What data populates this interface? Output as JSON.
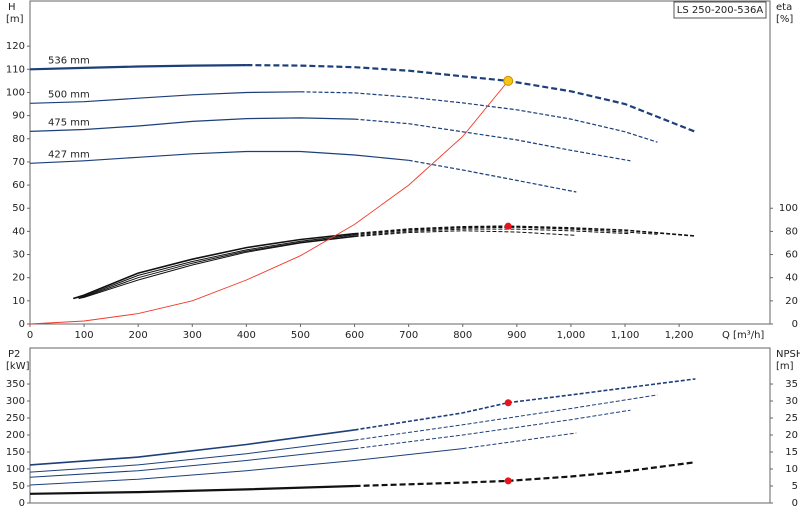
{
  "badge": "LS 250-200-536A",
  "chart_data": [
    {
      "type": "line",
      "ylabel": "H",
      "yunit": "[m]",
      "y2label": "eta",
      "y2unit": "[%]",
      "xlabel": "Q [m³/h]",
      "xlim": [
        0,
        1368
      ],
      "ylim": [
        0,
        139.5
      ],
      "y2lim": [
        0,
        279
      ],
      "xticks": [
        0,
        100,
        200,
        300,
        400,
        500,
        600,
        700,
        800,
        900,
        {
          "value": 1000,
          "label": "1,000"
        },
        {
          "value": 1100,
          "label": "1,100"
        },
        {
          "value": 1200,
          "label": "1,200"
        }
      ],
      "yticks": [
        0,
        10,
        20,
        30,
        40,
        50,
        60,
        70,
        80,
        90,
        100,
        110,
        120
      ],
      "y2ticks": [
        0,
        20,
        40,
        60,
        80,
        100
      ],
      "series": [
        {
          "name": "536 mm",
          "color": "#1d3f7a",
          "width": 2.2,
          "dash_from": 400,
          "x": [
            0,
            100,
            200,
            300,
            400,
            500,
            600,
            700,
            800,
            884,
            1000,
            1100,
            1230
          ],
          "values": [
            110,
            110.6,
            111.2,
            111.6,
            111.8,
            111.6,
            110.9,
            109.4,
            107,
            105,
            100.5,
            95,
            83
          ]
        },
        {
          "name": "500 mm",
          "color": "#1d3f7a",
          "width": 1.2,
          "dash_from": 500,
          "x": [
            0,
            100,
            200,
            300,
            400,
            500,
            600,
            700,
            800,
            900,
            1000,
            1100,
            1160
          ],
          "values": [
            95.3,
            96,
            97.5,
            99,
            100,
            100.3,
            99.8,
            98,
            95.5,
            92.5,
            88.5,
            83,
            78.5
          ]
        },
        {
          "name": "475 mm",
          "color": "#1d3f7a",
          "width": 1.2,
          "dash_from": 600,
          "x": [
            0,
            100,
            200,
            300,
            400,
            500,
            600,
            700,
            800,
            900,
            1000,
            1110
          ],
          "values": [
            83.2,
            84,
            85.5,
            87.5,
            88.7,
            89,
            88.5,
            86.5,
            83,
            79.5,
            75,
            70.5
          ]
        },
        {
          "name": "427 mm",
          "color": "#1d3f7a",
          "width": 1.2,
          "dash_from": 700,
          "x": [
            0,
            100,
            200,
            300,
            400,
            500,
            600,
            700,
            800,
            900,
            1010
          ],
          "values": [
            69.4,
            70.5,
            72,
            73.5,
            74.5,
            74.5,
            73,
            70.7,
            66.5,
            62,
            57
          ]
        },
        {
          "color": "#111111",
          "width": 1.6,
          "axis": "y2",
          "dash_from": 600,
          "x": [
            80,
            100,
            200,
            300,
            400,
            500,
            600,
            700,
            800,
            884,
            1000,
            1100,
            1230
          ],
          "values": [
            22,
            25,
            44,
            56,
            66,
            73,
            78,
            82,
            84,
            84.5,
            83,
            81,
            76
          ]
        },
        {
          "color": "#111111",
          "width": 1,
          "axis": "y2",
          "dash_from": 600,
          "x": [
            80,
            100,
            200,
            300,
            400,
            500,
            600,
            700,
            800,
            900,
            1000,
            1100,
            1160
          ],
          "values": [
            22,
            24,
            42,
            54,
            64,
            71.5,
            77,
            81,
            83,
            83.5,
            82,
            79.5,
            77.5
          ]
        },
        {
          "color": "#111111",
          "width": 1,
          "axis": "y2",
          "dash_from": 600,
          "x": [
            90,
            100,
            200,
            300,
            400,
            500,
            600,
            700,
            800,
            900,
            1000,
            1110
          ],
          "values": [
            22,
            23.5,
            40,
            52.5,
            63,
            70.5,
            76,
            80,
            82,
            82,
            80.5,
            78
          ]
        },
        {
          "color": "#111111",
          "width": 1,
          "axis": "y2",
          "dash_from": 600,
          "x": [
            90,
            100,
            200,
            300,
            400,
            500,
            600,
            700,
            800,
            900,
            1010
          ],
          "values": [
            22,
            23,
            38,
            51,
            62,
            70,
            75.5,
            79,
            80.5,
            79.5,
            76.5
          ]
        },
        {
          "color": "#f03a2a",
          "width": 0.9,
          "x": [
            0,
            100,
            200,
            300,
            400,
            500,
            600,
            700,
            800,
            884
          ],
          "values": [
            0,
            1.3,
            4.5,
            10,
            19,
            29.5,
            43,
            60,
            81,
            105
          ]
        }
      ],
      "points": [
        {
          "x": 884,
          "value": 105,
          "color": "#f5c518"
        },
        {
          "x": 884,
          "value": 84.5,
          "color": "#e8141a",
          "axis": "y2"
        }
      ]
    },
    {
      "type": "line",
      "ylabel": "P2",
      "yunit": "[kW]",
      "y2label": "NPSH",
      "y2unit": "[m]",
      "xlim": [
        0,
        1368
      ],
      "ylim": [
        0,
        456
      ],
      "y2lim": [
        0,
        45.6
      ],
      "yticks": [
        0,
        50,
        100,
        150,
        200,
        250,
        300,
        350
      ],
      "y2ticks": [
        0,
        5,
        10,
        15,
        20,
        25,
        30,
        35
      ],
      "series": [
        {
          "color": "#1d3f7a",
          "width": 1.6,
          "dash_from": 600,
          "x": [
            0,
            200,
            400,
            600,
            800,
            884,
            1000,
            1230
          ],
          "values": [
            112,
            135,
            172,
            215,
            265,
            295,
            318,
            365
          ]
        },
        {
          "color": "#1d3f7a",
          "width": 1,
          "dash_from": 600,
          "x": [
            0,
            200,
            400,
            600,
            800,
            1000,
            1160
          ],
          "values": [
            91,
            112,
            145,
            185,
            230,
            278,
            318
          ]
        },
        {
          "color": "#1d3f7a",
          "width": 1,
          "dash_from": 600,
          "x": [
            0,
            200,
            400,
            600,
            800,
            1000,
            1110
          ],
          "values": [
            76,
            95,
            125,
            160,
            200,
            245,
            273
          ]
        },
        {
          "color": "#1d3f7a",
          "width": 1,
          "dash_from": 800,
          "x": [
            0,
            200,
            400,
            600,
            800,
            1010
          ],
          "values": [
            53,
            70,
            95,
            125,
            160,
            206
          ]
        },
        {
          "color": "#111111",
          "width": 2.2,
          "axis": "y2",
          "dash_from": 600,
          "x": [
            0,
            200,
            400,
            600,
            800,
            884,
            1000,
            1100,
            1230
          ],
          "values": [
            2.7,
            3.2,
            4,
            5,
            6,
            6.5,
            7.8,
            9.3,
            12
          ]
        }
      ],
      "points": [
        {
          "x": 884,
          "value": 295,
          "color": "#e8141a"
        },
        {
          "x": 884,
          "value": 6.5,
          "color": "#e8141a",
          "axis": "y2"
        }
      ]
    }
  ]
}
